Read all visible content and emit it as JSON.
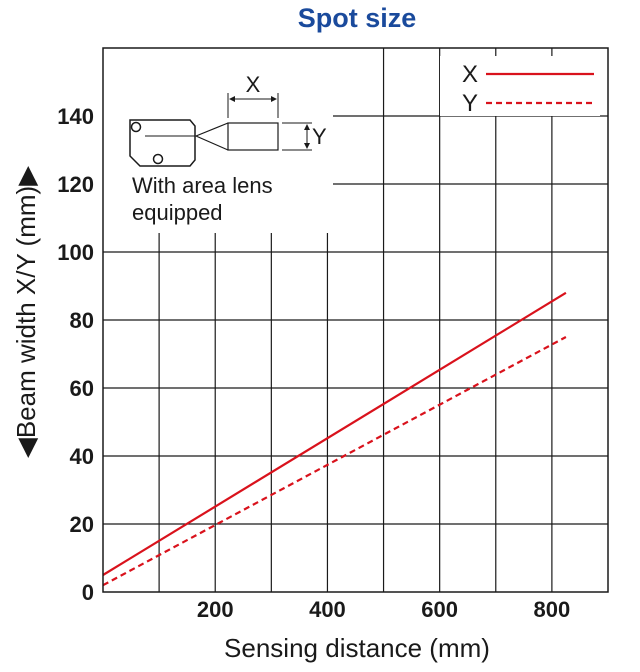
{
  "chart_data": {
    "type": "line",
    "title": "Spot size",
    "xlabel": "Sensing distance (mm)",
    "ylabel": "Beam width X/Y (mm)",
    "xlim": [
      0,
      900
    ],
    "ylim": [
      0,
      160
    ],
    "x_ticks": [
      200,
      400,
      600,
      800
    ],
    "y_ticks": [
      0,
      20,
      40,
      60,
      80,
      100,
      120,
      140
    ],
    "x_gridlines": [
      100,
      200,
      300,
      400,
      500,
      600,
      700,
      800
    ],
    "y_gridlines": [
      20,
      40,
      60,
      80,
      100,
      120,
      140
    ],
    "grid": true,
    "legend_position": "top-right",
    "series": [
      {
        "name": "X",
        "style": "solid",
        "color": "#d9121c",
        "x": [
          0,
          825
        ],
        "y": [
          5,
          88
        ]
      },
      {
        "name": "Y",
        "style": "dashed",
        "color": "#d9121c",
        "x": [
          0,
          825
        ],
        "y": [
          2,
          75
        ]
      }
    ]
  },
  "inset": {
    "caption_line1": "With area lens",
    "caption_line2": "equipped",
    "dim_x_label": "X",
    "dim_y_label": "Y"
  }
}
